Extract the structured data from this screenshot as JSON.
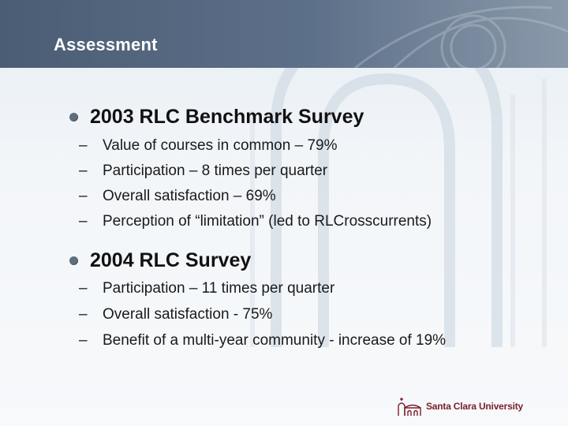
{
  "slide": {
    "title": "Assessment"
  },
  "sections": [
    {
      "heading": "2003 RLC Benchmark Survey",
      "items": [
        "Value of courses in common – 79%",
        "Participation – 8 times per quarter",
        "Overall satisfaction – 69%",
        "Perception of “limitation” (led to RLCrosscurrents)"
      ]
    },
    {
      "heading": "2004 RLC Survey",
      "items": [
        "Participation – 11 times per quarter",
        "Overall satisfaction -  75%",
        "Benefit of a multi-year community - increase of 19%"
      ]
    }
  ],
  "dash": "–",
  "footer": {
    "logo_text": "Santa Clara University",
    "logo_color": "#7a1f2b"
  },
  "colors": {
    "title_bar": "#4b5d74",
    "bullet": "#5f6e7d"
  }
}
